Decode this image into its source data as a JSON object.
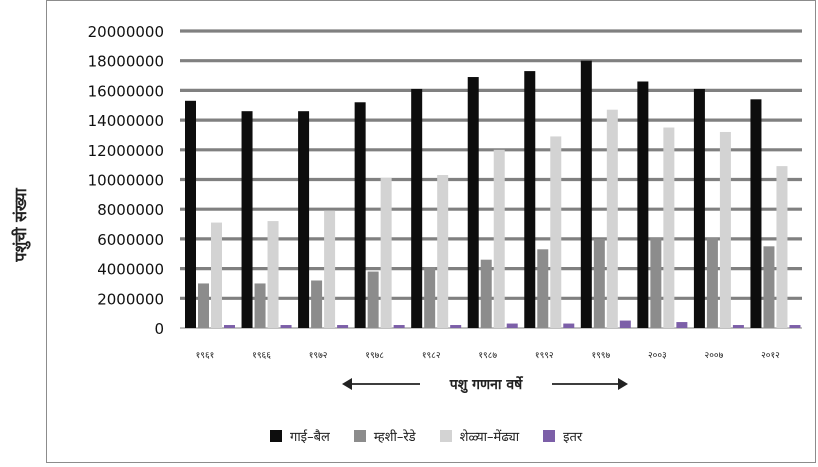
{
  "chart_data": {
    "type": "bar",
    "ylabel": "पशुंची संख्या",
    "xlabel": "पशु गणना वर्षे",
    "ylim": [
      0,
      20000000
    ],
    "yticks": [
      "0",
      "2000000",
      "4000000",
      "6000000",
      "8000000",
      "10000000",
      "12000000",
      "14000000",
      "16000000",
      "18000000",
      "20000000"
    ],
    "categories": [
      "१९६१",
      "१९६६",
      "१९७२",
      "१९७८",
      "१९८२",
      "१९८७",
      "१९९२",
      "१९९७",
      "२००३",
      "२००७",
      "२०१२"
    ],
    "grid": true,
    "legend_position": "bottom",
    "series": [
      {
        "name": "गाई–बैल",
        "color": "#0d0d0d",
        "values": [
          15300000,
          14600000,
          14600000,
          15200000,
          16100000,
          16900000,
          17300000,
          18000000,
          16600000,
          16100000,
          15400000
        ]
      },
      {
        "name": "म्हशी–रेडे",
        "color": "#8c8c8c",
        "values": [
          3000000,
          3000000,
          3200000,
          3800000,
          4100000,
          4600000,
          5300000,
          6000000,
          6100000,
          6100000,
          5500000
        ]
      },
      {
        "name": "शेळ्या–मेंढ्या",
        "color": "#d3d3d3",
        "values": [
          7100000,
          7200000,
          7900000,
          10100000,
          10300000,
          12000000,
          12900000,
          14700000,
          13500000,
          13200000,
          10900000
        ]
      },
      {
        "name": "इतर",
        "color": "#7c5fa8",
        "values": [
          200000,
          200000,
          200000,
          200000,
          200000,
          300000,
          300000,
          500000,
          400000,
          200000,
          200000
        ]
      }
    ]
  }
}
